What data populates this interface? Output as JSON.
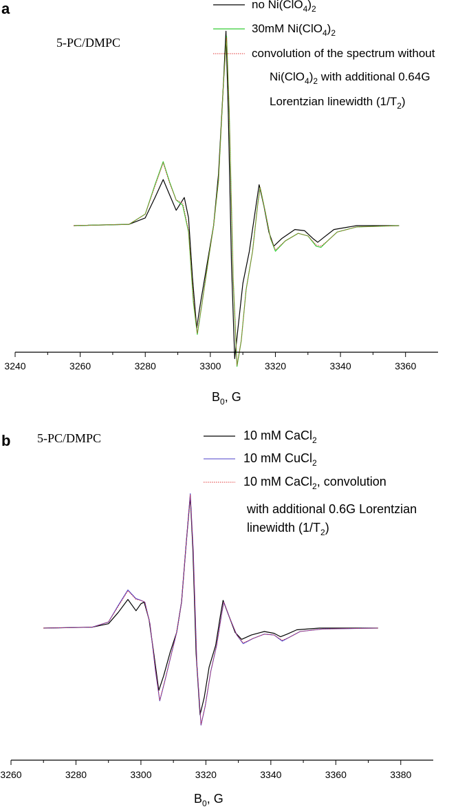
{
  "chart_data": [
    {
      "panel": "a",
      "type": "line",
      "sample_label": "5-PC/DMPC",
      "xlabel_main": "B",
      "xlabel_sub": "0",
      "xlabel_rest": ", G",
      "xlim": [
        3240,
        3370
      ],
      "xticks": [
        3240,
        3260,
        3280,
        3300,
        3320,
        3340,
        3360
      ],
      "ylim": [
        -1.2,
        1.6
      ],
      "yaxis_visible": false,
      "legend_position": "top-right",
      "legend_lines": [
        {
          "series": 0,
          "parts": [
            "no Ni(ClO",
            "4",
            ")",
            "2",
            ""
          ]
        },
        {
          "series": 1,
          "parts": [
            "30mM Ni(ClO",
            "4",
            ")",
            "2",
            ""
          ]
        },
        {
          "series": 2,
          "parts": [
            "convolution of the spectrum without",
            "",
            "",
            "",
            ""
          ]
        },
        {
          "series": null,
          "parts": [
            "Ni(ClO",
            "4",
            ")",
            "2",
            " with additional 0.64G"
          ]
        },
        {
          "series": null,
          "parts": [
            "Lorentzian linewidth (1/T",
            "2",
            ")",
            "",
            ""
          ]
        }
      ],
      "series": [
        {
          "color": "#000000",
          "dashed": false,
          "width": 1.2,
          "points": [
            [
              3258,
              0
            ],
            [
              3275,
              0.01
            ],
            [
              3280,
              0.06
            ],
            [
              3283,
              0.22
            ],
            [
              3285.5,
              0.36
            ],
            [
              3287.5,
              0.24
            ],
            [
              3289.5,
              0.12
            ],
            [
              3292,
              0.22
            ],
            [
              3293.3,
              0.06
            ],
            [
              3294.5,
              -0.4
            ],
            [
              3295.8,
              -0.8
            ],
            [
              3297,
              -0.6
            ],
            [
              3299,
              -0.3
            ],
            [
              3301,
              0
            ],
            [
              3302.5,
              0.4
            ],
            [
              3304,
              1.1
            ],
            [
              3304.8,
              1.52
            ],
            [
              3305.5,
              0.9
            ],
            [
              3306.5,
              -0.3
            ],
            [
              3307.5,
              -1.04
            ],
            [
              3308.5,
              -0.8
            ],
            [
              3310,
              -0.45
            ],
            [
              3312,
              -0.2
            ],
            [
              3314,
              0.15
            ],
            [
              3315,
              0.32
            ],
            [
              3316.5,
              0.15
            ],
            [
              3318,
              -0.05
            ],
            [
              3319.5,
              -0.16
            ],
            [
              3322,
              -0.1
            ],
            [
              3326,
              -0.03
            ],
            [
              3329,
              -0.04
            ],
            [
              3331.5,
              -0.1
            ],
            [
              3333,
              -0.13
            ],
            [
              3335,
              -0.09
            ],
            [
              3338,
              -0.03
            ],
            [
              3345,
              0
            ],
            [
              3358,
              0
            ]
          ]
        },
        {
          "color": "#33cc33",
          "dashed": false,
          "width": 1.2,
          "points": [
            [
              3258,
              0
            ],
            [
              3275,
              0.01
            ],
            [
              3280,
              0.09
            ],
            [
              3283,
              0.32
            ],
            [
              3285.5,
              0.5
            ],
            [
              3287.5,
              0.34
            ],
            [
              3289.5,
              0.2
            ],
            [
              3291.5,
              0.16
            ],
            [
              3293.3,
              -0.05
            ],
            [
              3294.8,
              -0.6
            ],
            [
              3296,
              -0.85
            ],
            [
              3297.5,
              -0.6
            ],
            [
              3299.5,
              -0.25
            ],
            [
              3301,
              0
            ],
            [
              3302.5,
              0.35
            ],
            [
              3304,
              1.1
            ],
            [
              3305,
              1.48
            ],
            [
              3305.8,
              0.9
            ],
            [
              3307,
              -0.4
            ],
            [
              3308.2,
              -1.1
            ],
            [
              3309.5,
              -0.9
            ],
            [
              3311,
              -0.5
            ],
            [
              3313,
              -0.2
            ],
            [
              3314.5,
              0.15
            ],
            [
              3315.3,
              0.3
            ],
            [
              3316.8,
              0.12
            ],
            [
              3318.5,
              -0.1
            ],
            [
              3320,
              -0.2
            ],
            [
              3323,
              -0.12
            ],
            [
              3327,
              -0.06
            ],
            [
              3330,
              -0.08
            ],
            [
              3332.5,
              -0.16
            ],
            [
              3334,
              -0.17
            ],
            [
              3336,
              -0.12
            ],
            [
              3339,
              -0.05
            ],
            [
              3345,
              -0.01
            ],
            [
              3358,
              0
            ]
          ]
        },
        {
          "color": "#e03030",
          "dashed": true,
          "width": 0.9,
          "points": [
            [
              3258,
              0
            ],
            [
              3275,
              0.01
            ],
            [
              3280,
              0.09
            ],
            [
              3283,
              0.31
            ],
            [
              3285.5,
              0.49
            ],
            [
              3287.5,
              0.33
            ],
            [
              3289.5,
              0.2
            ],
            [
              3291.5,
              0.18
            ],
            [
              3293.3,
              -0.04
            ],
            [
              3294.8,
              -0.58
            ],
            [
              3296,
              -0.84
            ],
            [
              3297.5,
              -0.6
            ],
            [
              3299.5,
              -0.25
            ],
            [
              3301,
              0
            ],
            [
              3302.5,
              0.35
            ],
            [
              3304,
              1.1
            ],
            [
              3305,
              1.47
            ],
            [
              3305.8,
              0.9
            ],
            [
              3307,
              -0.4
            ],
            [
              3308.2,
              -1.09
            ],
            [
              3309.5,
              -0.9
            ],
            [
              3311,
              -0.5
            ],
            [
              3313,
              -0.2
            ],
            [
              3314.5,
              0.15
            ],
            [
              3315.3,
              0.3
            ],
            [
              3316.8,
              0.12
            ],
            [
              3318.5,
              -0.1
            ],
            [
              3320,
              -0.19
            ],
            [
              3323,
              -0.12
            ],
            [
              3327,
              -0.06
            ],
            [
              3330,
              -0.08
            ],
            [
              3332.5,
              -0.15
            ],
            [
              3334,
              -0.16
            ],
            [
              3336,
              -0.12
            ],
            [
              3339,
              -0.05
            ],
            [
              3345,
              -0.01
            ],
            [
              3358,
              0
            ]
          ]
        }
      ]
    },
    {
      "panel": "b",
      "type": "line",
      "sample_label": "5-PC/DMPC",
      "xlabel_main": "B",
      "xlabel_sub": "0",
      "xlabel_rest": ", G",
      "xlim": [
        3260,
        3390
      ],
      "xticks": [
        3260,
        3280,
        3300,
        3320,
        3340,
        3360,
        3380
      ],
      "ylim": [
        -1.2,
        1.6
      ],
      "yaxis_visible": false,
      "legend_position": "top-right",
      "legend_lines": [
        {
          "series": 0,
          "parts": [
            "10 mM CaCl",
            "2",
            "",
            "",
            ""
          ]
        },
        {
          "series": 1,
          "parts": [
            "10 mM CuCl",
            "2",
            "",
            "",
            ""
          ]
        },
        {
          "series": 2,
          "parts": [
            "10 mM CaCl",
            "2",
            ", convolution",
            "",
            ""
          ]
        },
        {
          "series": null,
          "parts": [
            "with additional 0.6G Lorentzian",
            "",
            "",
            "",
            ""
          ]
        },
        {
          "series": null,
          "parts": [
            "linewidth (1/T",
            "2",
            ")",
            "",
            ""
          ]
        }
      ],
      "series": [
        {
          "color": "#000000",
          "dashed": false,
          "width": 1.2,
          "points": [
            [
              3270,
              0
            ],
            [
              3285,
              0.01
            ],
            [
              3290,
              0.05
            ],
            [
              3293,
              0.18
            ],
            [
              3296,
              0.33
            ],
            [
              3298.5,
              0.2
            ],
            [
              3300,
              0.28
            ],
            [
              3301,
              0.3
            ],
            [
              3302.5,
              0.1
            ],
            [
              3304,
              -0.3
            ],
            [
              3305.5,
              -0.72
            ],
            [
              3307,
              -0.55
            ],
            [
              3309,
              -0.28
            ],
            [
              3311,
              -0.05
            ],
            [
              3312.5,
              0.3
            ],
            [
              3314,
              1.0
            ],
            [
              3315.2,
              1.52
            ],
            [
              3316,
              0.9
            ],
            [
              3317,
              -0.3
            ],
            [
              3318.2,
              -1.0
            ],
            [
              3319.5,
              -0.8
            ],
            [
              3321,
              -0.45
            ],
            [
              3323,
              -0.2
            ],
            [
              3324.5,
              0.15
            ],
            [
              3325.3,
              0.32
            ],
            [
              3327,
              0.15
            ],
            [
              3329,
              -0.05
            ],
            [
              3331,
              -0.13
            ],
            [
              3334,
              -0.08
            ],
            [
              3338,
              -0.04
            ],
            [
              3341,
              -0.06
            ],
            [
              3343,
              -0.1
            ],
            [
              3345,
              -0.07
            ],
            [
              3348,
              -0.02
            ],
            [
              3355,
              0
            ],
            [
              3373,
              0
            ]
          ]
        },
        {
          "color": "#4b3fc8",
          "dashed": false,
          "width": 1.1,
          "points": [
            [
              3270,
              0
            ],
            [
              3285,
              0.01
            ],
            [
              3290,
              0.07
            ],
            [
              3293,
              0.26
            ],
            [
              3296,
              0.44
            ],
            [
              3298.5,
              0.34
            ],
            [
              3300,
              0.32
            ],
            [
              3301.2,
              0.3
            ],
            [
              3302.8,
              0.05
            ],
            [
              3304.5,
              -0.5
            ],
            [
              3305.8,
              -0.84
            ],
            [
              3307.3,
              -0.62
            ],
            [
              3309.5,
              -0.28
            ],
            [
              3311,
              -0.05
            ],
            [
              3312.5,
              0.3
            ],
            [
              3314,
              1.0
            ],
            [
              3315.2,
              1.55
            ],
            [
              3316.1,
              0.9
            ],
            [
              3317.2,
              -0.4
            ],
            [
              3318.5,
              -1.12
            ],
            [
              3319.8,
              -0.9
            ],
            [
              3321.5,
              -0.5
            ],
            [
              3323.3,
              -0.2
            ],
            [
              3324.8,
              0.15
            ],
            [
              3325.5,
              0.3
            ],
            [
              3327.3,
              0.12
            ],
            [
              3329.5,
              -0.08
            ],
            [
              3331.5,
              -0.18
            ],
            [
              3334.5,
              -0.12
            ],
            [
              3338,
              -0.07
            ],
            [
              3341,
              -0.08
            ],
            [
              3343.5,
              -0.15
            ],
            [
              3345.5,
              -0.11
            ],
            [
              3349,
              -0.04
            ],
            [
              3356,
              -0.01
            ],
            [
              3373,
              0
            ]
          ]
        },
        {
          "color": "#e03030",
          "dashed": true,
          "width": 0.9,
          "points": [
            [
              3270,
              0
            ],
            [
              3285,
              0.01
            ],
            [
              3290,
              0.07
            ],
            [
              3293,
              0.25
            ],
            [
              3296,
              0.43
            ],
            [
              3298.5,
              0.33
            ],
            [
              3300,
              0.32
            ],
            [
              3301.2,
              0.3
            ],
            [
              3302.8,
              0.05
            ],
            [
              3304.5,
              -0.49
            ],
            [
              3305.8,
              -0.83
            ],
            [
              3307.3,
              -0.62
            ],
            [
              3309.5,
              -0.28
            ],
            [
              3311,
              -0.05
            ],
            [
              3312.5,
              0.3
            ],
            [
              3314,
              1.0
            ],
            [
              3315.2,
              1.54
            ],
            [
              3316.1,
              0.9
            ],
            [
              3317.2,
              -0.4
            ],
            [
              3318.5,
              -1.11
            ],
            [
              3319.8,
              -0.9
            ],
            [
              3321.5,
              -0.5
            ],
            [
              3323.3,
              -0.2
            ],
            [
              3324.8,
              0.15
            ],
            [
              3325.5,
              0.3
            ],
            [
              3327.3,
              0.12
            ],
            [
              3329.5,
              -0.08
            ],
            [
              3331.5,
              -0.17
            ],
            [
              3334.5,
              -0.12
            ],
            [
              3338,
              -0.07
            ],
            [
              3341,
              -0.08
            ],
            [
              3343.5,
              -0.14
            ],
            [
              3345.5,
              -0.11
            ],
            [
              3349,
              -0.04
            ],
            [
              3356,
              -0.01
            ],
            [
              3373,
              0
            ]
          ]
        }
      ]
    }
  ]
}
